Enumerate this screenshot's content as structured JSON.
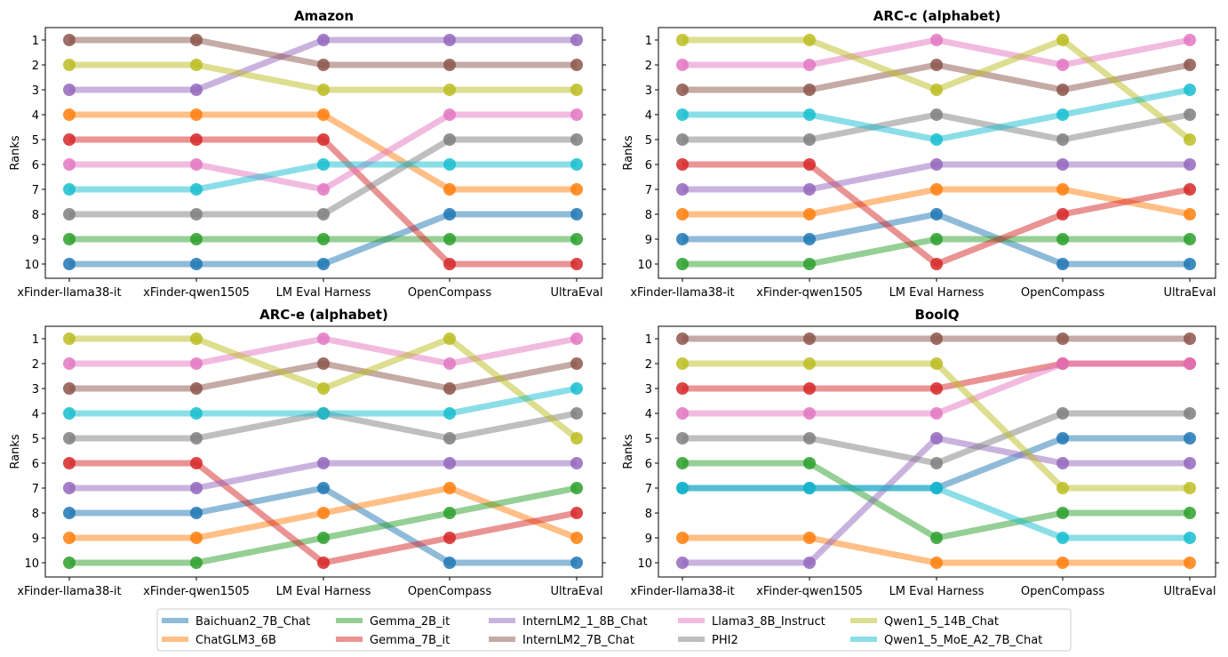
{
  "chart_data": [
    {
      "type": "line",
      "title": "Amazon",
      "ylabel": "Ranks",
      "categories": [
        "xFinder-llama38-it",
        "xFinder-qwen1505",
        "LM Eval Harness",
        "OpenCompass",
        "UltraEval"
      ],
      "ylim": [
        10,
        1
      ],
      "yticks": [
        "1",
        "2",
        "3",
        "4",
        "5",
        "6",
        "7",
        "8",
        "9",
        "10"
      ],
      "series": [
        {
          "name": "Baichuan2_7B_Chat",
          "values": [
            10,
            10,
            10,
            8,
            8
          ]
        },
        {
          "name": "ChatGLM3_6B",
          "values": [
            4,
            4,
            4,
            7,
            7
          ]
        },
        {
          "name": "Gemma_2B_it",
          "values": [
            9,
            9,
            9,
            9,
            9
          ]
        },
        {
          "name": "Gemma_7B_it",
          "values": [
            5,
            5,
            5,
            10,
            10
          ]
        },
        {
          "name": "InternLM2_1_8B_Chat",
          "values": [
            3,
            3,
            1,
            1,
            1
          ]
        },
        {
          "name": "InternLM2_7B_Chat",
          "values": [
            1,
            1,
            2,
            2,
            2
          ]
        },
        {
          "name": "Llama3_8B_Instruct",
          "values": [
            6,
            6,
            7,
            4,
            4
          ]
        },
        {
          "name": "PHI2",
          "values": [
            8,
            8,
            8,
            5,
            5
          ]
        },
        {
          "name": "Qwen1_5_14B_Chat",
          "values": [
            2,
            2,
            3,
            3,
            3
          ]
        },
        {
          "name": "Qwen1_5_MoE_A2_7B_Chat",
          "values": [
            7,
            7,
            6,
            6,
            6
          ]
        }
      ]
    },
    {
      "type": "line",
      "title": "ARC-c (alphabet)",
      "ylabel": "Ranks",
      "categories": [
        "xFinder-llama38-it",
        "xFinder-qwen1505",
        "LM Eval Harness",
        "OpenCompass",
        "UltraEval"
      ],
      "ylim": [
        10,
        1
      ],
      "yticks": [
        "1",
        "2",
        "3",
        "4",
        "5",
        "6",
        "7",
        "8",
        "9",
        "10"
      ],
      "series": [
        {
          "name": "Baichuan2_7B_Chat",
          "values": [
            9,
            9,
            8,
            10,
            10
          ]
        },
        {
          "name": "ChatGLM3_6B",
          "values": [
            8,
            8,
            7,
            7,
            8
          ]
        },
        {
          "name": "Gemma_2B_it",
          "values": [
            10,
            10,
            9,
            9,
            9
          ]
        },
        {
          "name": "Gemma_7B_it",
          "values": [
            6,
            6,
            10,
            8,
            7
          ]
        },
        {
          "name": "InternLM2_1_8B_Chat",
          "values": [
            7,
            7,
            6,
            6,
            6
          ]
        },
        {
          "name": "InternLM2_7B_Chat",
          "values": [
            3,
            3,
            2,
            3,
            2
          ]
        },
        {
          "name": "Llama3_8B_Instruct",
          "values": [
            2,
            2,
            1,
            2,
            1
          ]
        },
        {
          "name": "PHI2",
          "values": [
            5,
            5,
            4,
            5,
            4
          ]
        },
        {
          "name": "Qwen1_5_14B_Chat",
          "values": [
            1,
            1,
            3,
            1,
            5
          ]
        },
        {
          "name": "Qwen1_5_MoE_A2_7B_Chat",
          "values": [
            4,
            4,
            5,
            4,
            3
          ]
        }
      ]
    },
    {
      "type": "line",
      "title": "ARC-e (alphabet)",
      "ylabel": "Ranks",
      "categories": [
        "xFinder-llama38-it",
        "xFinder-qwen1505",
        "LM Eval Harness",
        "OpenCompass",
        "UltraEval"
      ],
      "ylim": [
        10,
        1
      ],
      "yticks": [
        "1",
        "2",
        "3",
        "4",
        "5",
        "6",
        "7",
        "8",
        "9",
        "10"
      ],
      "series": [
        {
          "name": "Baichuan2_7B_Chat",
          "values": [
            8,
            8,
            7,
            10,
            10
          ]
        },
        {
          "name": "ChatGLM3_6B",
          "values": [
            9,
            9,
            8,
            7,
            9
          ]
        },
        {
          "name": "Gemma_2B_it",
          "values": [
            10,
            10,
            9,
            8,
            7
          ]
        },
        {
          "name": "Gemma_7B_it",
          "values": [
            6,
            6,
            10,
            9,
            8
          ]
        },
        {
          "name": "InternLM2_1_8B_Chat",
          "values": [
            7,
            7,
            6,
            6,
            6
          ]
        },
        {
          "name": "InternLM2_7B_Chat",
          "values": [
            3,
            3,
            2,
            3,
            2
          ]
        },
        {
          "name": "Llama3_8B_Instruct",
          "values": [
            2,
            2,
            1,
            2,
            1
          ]
        },
        {
          "name": "PHI2",
          "values": [
            5,
            5,
            4,
            5,
            4
          ]
        },
        {
          "name": "Qwen1_5_14B_Chat",
          "values": [
            1,
            1,
            3,
            1,
            5
          ]
        },
        {
          "name": "Qwen1_5_MoE_A2_7B_Chat",
          "values": [
            4,
            4,
            4,
            4,
            3
          ]
        }
      ]
    },
    {
      "type": "line",
      "title": "BoolQ",
      "ylabel": "Ranks",
      "categories": [
        "xFinder-llama38-it",
        "xFinder-qwen1505",
        "LM Eval Harness",
        "OpenCompass",
        "UltraEval"
      ],
      "ylim": [
        10,
        1
      ],
      "yticks": [
        "1",
        "2",
        "3",
        "4",
        "5",
        "6",
        "7",
        "8",
        "9",
        "10"
      ],
      "series": [
        {
          "name": "Baichuan2_7B_Chat",
          "values": [
            7,
            7,
            7,
            5,
            5
          ]
        },
        {
          "name": "ChatGLM3_6B",
          "values": [
            9,
            9,
            10,
            10,
            10
          ]
        },
        {
          "name": "Gemma_2B_it",
          "values": [
            6,
            6,
            9,
            8,
            8
          ]
        },
        {
          "name": "Gemma_7B_it",
          "values": [
            3,
            3,
            3,
            2,
            2
          ]
        },
        {
          "name": "InternLM2_1_8B_Chat",
          "values": [
            10,
            10,
            5,
            6,
            6
          ]
        },
        {
          "name": "InternLM2_7B_Chat",
          "values": [
            1,
            1,
            1,
            1,
            1
          ]
        },
        {
          "name": "Llama3_8B_Instruct",
          "values": [
            4,
            4,
            4,
            2,
            2
          ]
        },
        {
          "name": "PHI2",
          "values": [
            5,
            5,
            6,
            4,
            4
          ]
        },
        {
          "name": "Qwen1_5_14B_Chat",
          "values": [
            2,
            2,
            2,
            7,
            7
          ]
        },
        {
          "name": "Qwen1_5_MoE_A2_7B_Chat",
          "values": [
            7,
            7,
            7,
            9,
            9
          ]
        }
      ]
    }
  ],
  "legend": {
    "placement": "bottom-center",
    "items": [
      {
        "name": "Baichuan2_7B_Chat",
        "color": "#1f77b4"
      },
      {
        "name": "ChatGLM3_6B",
        "color": "#ff7f0e"
      },
      {
        "name": "Gemma_2B_it",
        "color": "#2ca02c"
      },
      {
        "name": "Gemma_7B_it",
        "color": "#d62728"
      },
      {
        "name": "InternLM2_1_8B_Chat",
        "color": "#9467bd"
      },
      {
        "name": "InternLM2_7B_Chat",
        "color": "#8c564b"
      },
      {
        "name": "Llama3_8B_Instruct",
        "color": "#e377c2"
      },
      {
        "name": "PHI2",
        "color": "#7f7f7f"
      },
      {
        "name": "Qwen1_5_14B_Chat",
        "color": "#bcbd22"
      },
      {
        "name": "Qwen1_5_MoE_A2_7B_Chat",
        "color": "#17becf"
      }
    ]
  }
}
